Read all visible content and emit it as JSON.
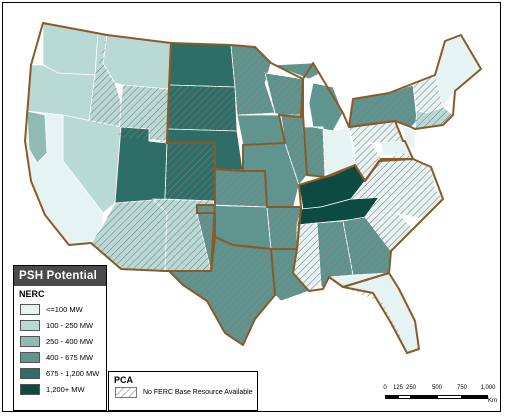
{
  "legend": {
    "title": "PSH Potential",
    "subtitle": "NERC",
    "classes": [
      {
        "label": "<=100 MW",
        "color": "#e6f3f3"
      },
      {
        "label": "100 - 250 MW",
        "color": "#b9d9d5"
      },
      {
        "label": "250 - 400 MW",
        "color": "#8fbbb4"
      },
      {
        "label": "400 - 675 MW",
        "color": "#5f958e"
      },
      {
        "label": "675 - 1,200 MW",
        "color": "#2e6e66"
      },
      {
        "label": "1,200+ MW",
        "color": "#0c4a42"
      }
    ]
  },
  "pca_legend": {
    "title": "PCA",
    "item_label": "No FERC Base Resource Available"
  },
  "scale_bar": {
    "ticks": [
      "0",
      "125",
      "250",
      "500",
      "750",
      "1,000"
    ],
    "unit": "Km"
  },
  "colors": {
    "border": "#8a5a2a",
    "hatch": "#888888"
  }
}
